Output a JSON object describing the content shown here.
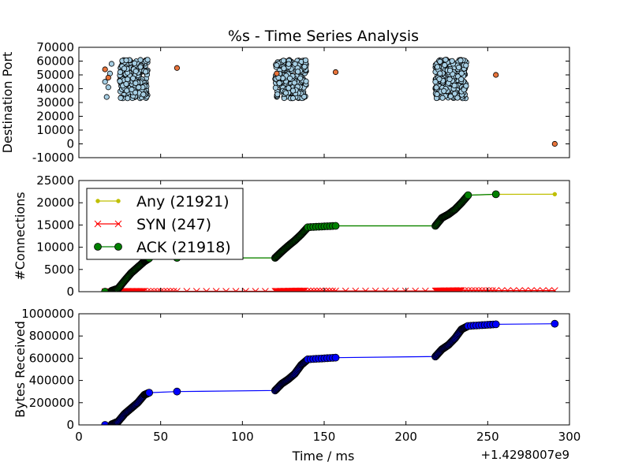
{
  "figure": {
    "title": "%s - Time Series Analysis",
    "xlabel": "Time / ms",
    "x_offset_label": "+1.4298007e9",
    "xticks": [
      0,
      50,
      100,
      150,
      200,
      250,
      300
    ],
    "xlim": [
      0,
      300
    ]
  },
  "colors": {
    "any": "#bfbf00",
    "syn": "#ff0000",
    "ack": "#008000",
    "bytes": "#0000ff",
    "scatter_light": "#a6cee3",
    "scatter_orange": "#e8743b"
  },
  "chart_data": [
    {
      "type": "scatter",
      "title": "%s - Time Series Analysis",
      "xlabel": "",
      "ylabel": "Destination Port",
      "ylim": [
        -10000,
        70000
      ],
      "yticks": [
        -10000,
        0,
        10000,
        20000,
        30000,
        40000,
        50000,
        60000,
        70000
      ],
      "series": [
        {
          "color": "light-blue",
          "clusters": [
            {
              "x_range": [
                25,
                42
              ],
              "y_range": [
                33000,
                61000
              ]
            },
            {
              "x_range": [
                120,
                139
              ],
              "y_range": [
                33000,
                61000
              ]
            },
            {
              "x_range": [
                218,
                237
              ],
              "y_range": [
                33000,
                61000
              ]
            }
          ],
          "points": [
            [
              16,
              45000
            ],
            [
              17,
              34000
            ],
            [
              18,
              41000
            ],
            [
              20,
              58000
            ],
            [
              19,
              51000
            ],
            [
              122,
              48000
            ],
            [
              121,
              57000
            ],
            [
              218,
              45000
            ],
            [
              219,
              36000
            ]
          ]
        },
        {
          "color": "orange",
          "points": [
            [
              16,
              54000
            ],
            [
              18,
              48000
            ],
            [
              60,
              55000
            ],
            [
              121,
              51000
            ],
            [
              157,
              52000
            ],
            [
              255,
              50000
            ],
            [
              291,
              0
            ]
          ]
        }
      ]
    },
    {
      "type": "line",
      "xlabel": "",
      "ylabel": "#Connections",
      "ylim": [
        0,
        25000
      ],
      "yticks": [
        0,
        5000,
        10000,
        15000,
        20000,
        25000
      ],
      "legend": {
        "placement": "upper-left"
      },
      "series": [
        {
          "name": "Any (21921)",
          "color": "yellow",
          "marker": "dot",
          "points": [
            [
              16,
              0
            ],
            [
              20,
              200
            ],
            [
              24,
              700
            ],
            [
              28,
              2500
            ],
            [
              32,
              4200
            ],
            [
              36,
              5500
            ],
            [
              40,
              6800
            ],
            [
              43,
              7500
            ],
            [
              60,
              7600
            ],
            [
              120,
              7600
            ],
            [
              124,
              9000
            ],
            [
              128,
              10300
            ],
            [
              132,
              11500
            ],
            [
              136,
              12900
            ],
            [
              140,
              14500
            ],
            [
              157,
              14800
            ],
            [
              218,
              14800
            ],
            [
              222,
              16600
            ],
            [
              226,
              17400
            ],
            [
              230,
              18500
            ],
            [
              234,
              20000
            ],
            [
              238,
              21700
            ],
            [
              255,
              21900
            ],
            [
              291,
              21921
            ]
          ]
        },
        {
          "name": "SYN (247)",
          "color": "red",
          "marker": "x",
          "points": [
            [
              16,
              0
            ],
            [
              22,
              20
            ],
            [
              28,
              60
            ],
            [
              34,
              75
            ],
            [
              40,
              80
            ],
            [
              60,
              82
            ],
            [
              120,
              85
            ],
            [
              126,
              110
            ],
            [
              132,
              150
            ],
            [
              138,
              160
            ],
            [
              157,
              162
            ],
            [
              218,
              165
            ],
            [
              222,
              190
            ],
            [
              228,
              230
            ],
            [
              234,
              240
            ],
            [
              255,
              245
            ],
            [
              291,
              247
            ]
          ]
        },
        {
          "name": "ACK (21918)",
          "color": "green",
          "marker": "circle",
          "points": [
            [
              16,
              0
            ],
            [
              20,
              200
            ],
            [
              24,
              700
            ],
            [
              28,
              2500
            ],
            [
              32,
              4200
            ],
            [
              36,
              5500
            ],
            [
              40,
              6800
            ],
            [
              43,
              7500
            ],
            [
              60,
              7600
            ],
            [
              120,
              7600
            ],
            [
              124,
              9000
            ],
            [
              128,
              10300
            ],
            [
              132,
              11500
            ],
            [
              136,
              12900
            ],
            [
              140,
              14500
            ],
            [
              157,
              14800
            ],
            [
              218,
              14800
            ],
            [
              222,
              16600
            ],
            [
              226,
              17400
            ],
            [
              230,
              18500
            ],
            [
              234,
              20000
            ],
            [
              238,
              21700
            ],
            [
              255,
              21918
            ]
          ]
        }
      ]
    },
    {
      "type": "line",
      "xlabel": "Time / ms",
      "ylabel": "Bytes Received",
      "ylim": [
        0,
        1000000
      ],
      "yticks": [
        0,
        200000,
        400000,
        600000,
        800000,
        1000000
      ],
      "series": [
        {
          "color": "blue",
          "marker": "circle",
          "points": [
            [
              16,
              0
            ],
            [
              20,
              5000
            ],
            [
              24,
              30000
            ],
            [
              28,
              100000
            ],
            [
              32,
              150000
            ],
            [
              36,
              200000
            ],
            [
              40,
              270000
            ],
            [
              43,
              290000
            ],
            [
              60,
              300000
            ],
            [
              120,
              310000
            ],
            [
              124,
              370000
            ],
            [
              128,
              410000
            ],
            [
              132,
              460000
            ],
            [
              136,
              540000
            ],
            [
              140,
              590000
            ],
            [
              157,
              605000
            ],
            [
              218,
              615000
            ],
            [
              222,
              680000
            ],
            [
              226,
              720000
            ],
            [
              230,
              780000
            ],
            [
              234,
              860000
            ],
            [
              238,
              890000
            ],
            [
              255,
              905000
            ],
            [
              291,
              910000
            ]
          ]
        }
      ]
    }
  ]
}
